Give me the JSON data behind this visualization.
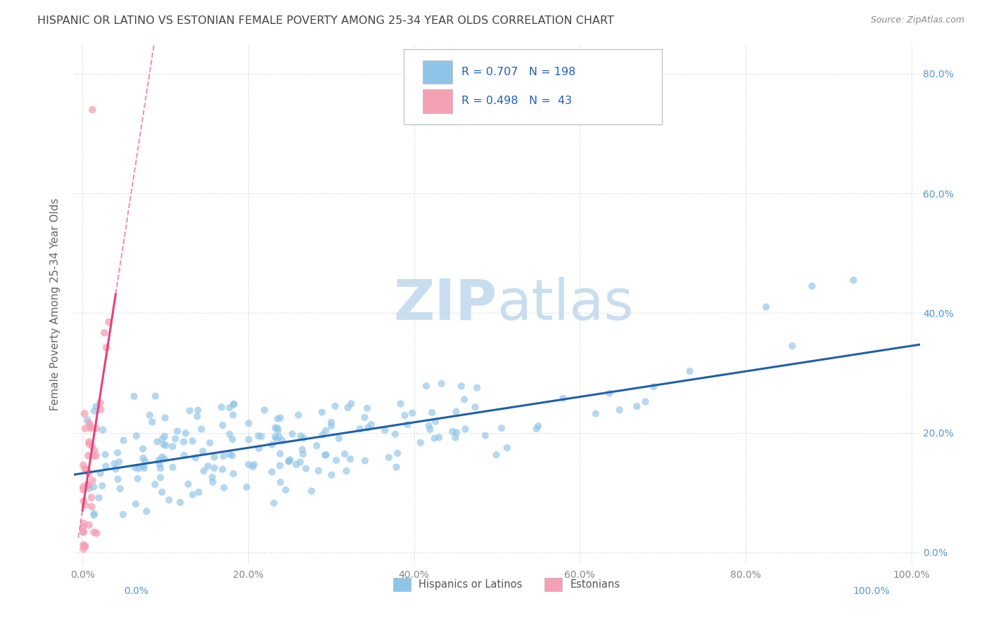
{
  "title": "HISPANIC OR LATINO VS ESTONIAN FEMALE POVERTY AMONG 25-34 YEAR OLDS CORRELATION CHART",
  "source": "Source: ZipAtlas.com",
  "ylabel": "Female Poverty Among 25-34 Year Olds",
  "xlim": [
    -0.01,
    1.01
  ],
  "ylim": [
    -0.02,
    0.85
  ],
  "x_tick_labels": [
    "0.0%",
    "20.0%",
    "40.0%",
    "60.0%",
    "80.0%",
    "100.0%"
  ],
  "y_tick_labels_right": [
    "0.0%",
    "20.0%",
    "40.0%",
    "60.0%",
    "80.0%"
  ],
  "blue_color": "#8ec4e8",
  "pink_color": "#f4a0b5",
  "trend_blue": "#2060a8",
  "trend_pink": "#e8407a",
  "legend_R_blue": "0.707",
  "legend_N_blue": "198",
  "legend_R_pink": "0.498",
  "legend_N_pink": "43",
  "watermark_zip": "ZIP",
  "watermark_atlas": "atlas",
  "watermark_color": "#c8ddf0",
  "background_color": "#ffffff",
  "grid_color": "#cccccc",
  "title_color": "#444444",
  "source_color": "#888888",
  "right_label_color": "#5599cc",
  "bottom_label_color": "#5599cc",
  "legend_text_color": "#2060c0",
  "legend_N_color": "#cc2020"
}
